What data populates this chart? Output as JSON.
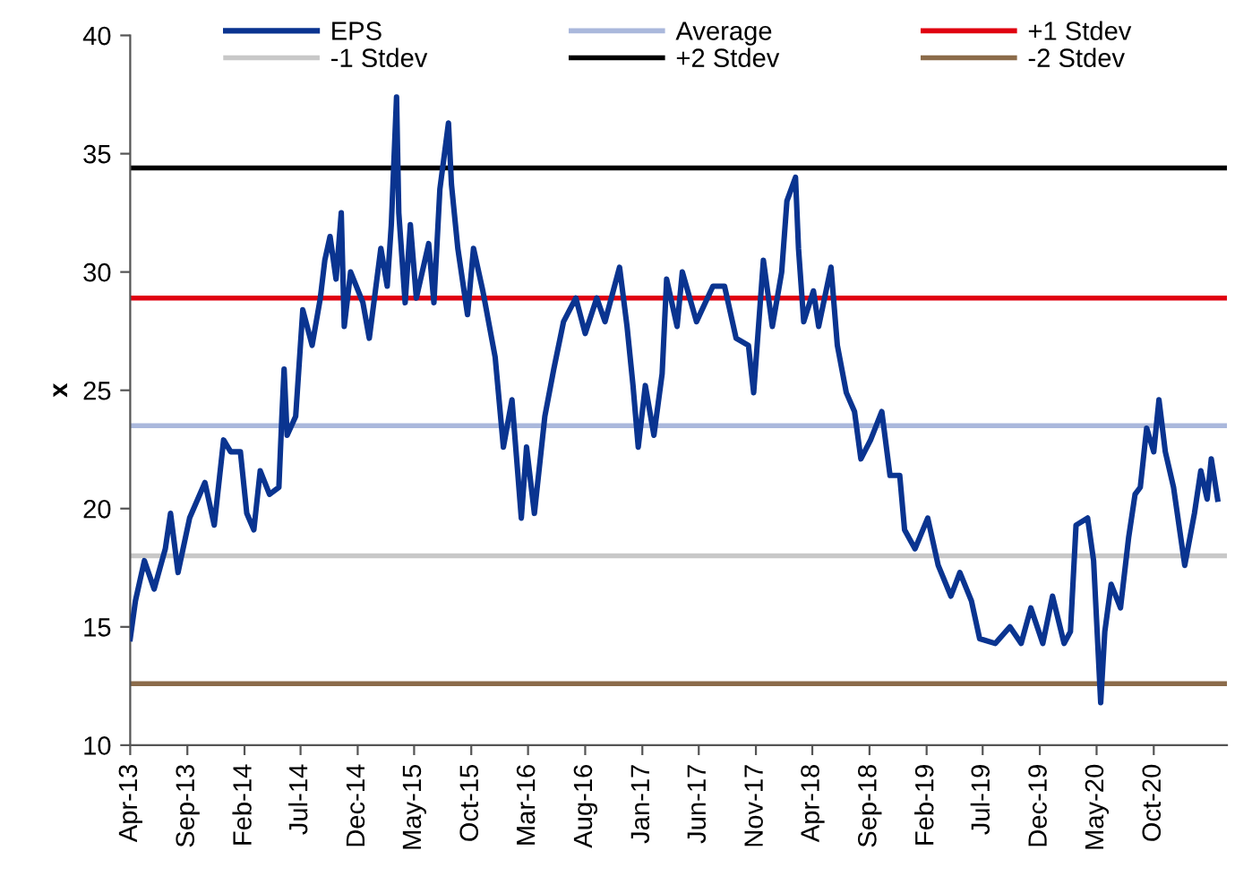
{
  "chart_data": {
    "type": "line",
    "ylabel": "x",
    "x": [
      "2013-04-01",
      "2013-04-15",
      "2013-05-09",
      "2013-06-04",
      "2013-07-04",
      "2013-07-18",
      "2013-08-07",
      "2013-09-07",
      "2013-10-18",
      "2013-11-12",
      "2013-12-07",
      "2013-12-26",
      "2014-01-21",
      "2014-02-07",
      "2014-02-26",
      "2014-03-15",
      "2014-04-09",
      "2014-05-04",
      "2014-05-12",
      "2014-05-18",
      "2014-05-26",
      "2014-06-18",
      "2014-07-07",
      "2014-08-01",
      "2014-08-23",
      "2014-09-04",
      "2014-09-18",
      "2014-10-04",
      "2014-10-18",
      "2014-10-26",
      "2014-11-12",
      "2014-12-15",
      "2015-01-01",
      "2015-02-01",
      "2015-02-18",
      "2015-03-01",
      "2015-03-15",
      "2015-03-21",
      "2015-04-07",
      "2015-04-21",
      "2015-05-07",
      "2015-06-09",
      "2015-06-23",
      "2015-07-09",
      "2015-08-01",
      "2015-08-09",
      "2015-08-26",
      "2015-09-21",
      "2015-10-07",
      "2015-11-01",
      "2015-12-04",
      "2015-12-26",
      "2016-01-18",
      "2016-02-12",
      "2016-02-26",
      "2016-03-18",
      "2016-04-15",
      "2016-05-09",
      "2016-06-04",
      "2016-07-07",
      "2016-08-01",
      "2016-09-01",
      "2016-09-23",
      "2016-11-01",
      "2016-11-21",
      "2016-12-07",
      "2016-12-21",
      "2017-01-09",
      "2017-02-01",
      "2017-02-23",
      "2017-03-07",
      "2017-04-04",
      "2017-04-18",
      "2017-05-26",
      "2017-07-09",
      "2017-08-09",
      "2017-09-09",
      "2017-10-12",
      "2017-10-26",
      "2017-11-21",
      "2017-12-15",
      "2018-01-09",
      "2018-01-23",
      "2018-02-15",
      "2018-02-23",
      "2018-03-09",
      "2018-04-04",
      "2018-04-18",
      "2018-05-21",
      "2018-06-07",
      "2018-07-01",
      "2018-07-23",
      "2018-08-09",
      "2018-09-04",
      "2018-10-04",
      "2018-10-26",
      "2018-11-21",
      "2018-12-04",
      "2019-01-01",
      "2019-02-04",
      "2019-03-04",
      "2019-04-07",
      "2019-05-01",
      "2019-06-01",
      "2019-06-23",
      "2019-08-04",
      "2019-09-12",
      "2019-10-12",
      "2019-11-07",
      "2019-12-09",
      "2020-01-04",
      "2020-02-04",
      "2020-02-21",
      "2020-03-07",
      "2020-04-07",
      "2020-04-23",
      "2020-05-12",
      "2020-05-23",
      "2020-06-09",
      "2020-07-04",
      "2020-07-26",
      "2020-08-12",
      "2020-08-26",
      "2020-09-12",
      "2020-10-01",
      "2020-10-15",
      "2020-11-01",
      "2020-11-23",
      "2020-12-23",
      "2021-01-18",
      "2021-02-04",
      "2021-02-21",
      "2021-03-04",
      "2021-03-21"
    ],
    "series": [
      {
        "name": "EPS",
        "color": "#0a3490",
        "values": [
          14.5,
          16.1,
          17.8,
          16.6,
          18.3,
          19.8,
          17.3,
          19.6,
          21.1,
          19.3,
          22.9,
          22.4,
          22.4,
          19.8,
          19.1,
          21.6,
          20.6,
          20.9,
          23.9,
          25.9,
          23.1,
          23.9,
          28.4,
          26.9,
          28.9,
          30.5,
          31.5,
          29.7,
          32.5,
          27.7,
          30.0,
          28.7,
          27.2,
          31.0,
          29.4,
          32.0,
          37.4,
          32.5,
          28.7,
          32.0,
          28.9,
          31.2,
          28.7,
          33.5,
          36.3,
          33.7,
          31.0,
          28.2,
          31.0,
          29.2,
          26.4,
          22.6,
          24.6,
          19.6,
          22.6,
          19.8,
          23.9,
          25.9,
          27.9,
          28.9,
          27.4,
          28.9,
          27.9,
          30.2,
          27.7,
          25.2,
          22.6,
          25.2,
          23.1,
          25.7,
          29.7,
          27.7,
          30.0,
          27.9,
          29.4,
          29.4,
          27.2,
          26.9,
          24.9,
          30.5,
          27.7,
          30.0,
          33.0,
          34.0,
          31.0,
          27.9,
          29.2,
          27.7,
          30.2,
          26.9,
          24.9,
          24.1,
          22.1,
          22.9,
          24.1,
          21.4,
          21.4,
          19.1,
          18.3,
          19.6,
          17.6,
          16.3,
          17.3,
          16.1,
          14.5,
          14.3,
          15.0,
          14.3,
          15.8,
          14.3,
          16.3,
          14.3,
          14.8,
          19.3,
          19.6,
          17.8,
          11.8,
          14.8,
          16.8,
          15.8,
          18.8,
          20.6,
          20.9,
          23.4,
          22.4,
          24.6,
          22.4,
          20.9,
          17.6,
          19.8,
          21.6,
          20.4,
          22.1,
          20.4
        ]
      }
    ],
    "ref_lines": [
      {
        "axis": "y",
        "value": 18.0,
        "label": "-1 Stdev",
        "color": "#c8c8c8"
      },
      {
        "axis": "y",
        "value": 23.5,
        "label": "Average",
        "color": "#aab8dc"
      },
      {
        "axis": "y",
        "value": 34.4,
        "label": "+2 Stdev",
        "color": "#000000"
      },
      {
        "axis": "y",
        "value": 28.9,
        "label": "+1 Stdev",
        "color": "#e00010"
      },
      {
        "axis": "y",
        "value": 12.6,
        "label": "-2 Stdev",
        "color": "#8b6b4a"
      }
    ],
    "xlim": [
      "2013-04-01",
      "2021-04-15"
    ],
    "xticks": [
      {
        "value": "2013-04-01",
        "label": "Apr-13"
      },
      {
        "value": "2013-09-01",
        "label": "Sep-13"
      },
      {
        "value": "2014-02-01",
        "label": "Feb-14"
      },
      {
        "value": "2014-07-01",
        "label": "Jul-14"
      },
      {
        "value": "2014-12-01",
        "label": "Dec-14"
      },
      {
        "value": "2015-05-01",
        "label": "May-15"
      },
      {
        "value": "2015-10-01",
        "label": "Oct-15"
      },
      {
        "value": "2016-03-01",
        "label": "Mar-16"
      },
      {
        "value": "2016-08-01",
        "label": "Aug-16"
      },
      {
        "value": "2017-01-01",
        "label": "Jan-17"
      },
      {
        "value": "2017-06-01",
        "label": "Jun-17"
      },
      {
        "value": "2017-11-01",
        "label": "Nov-17"
      },
      {
        "value": "2018-04-01",
        "label": "Apr-18"
      },
      {
        "value": "2018-09-01",
        "label": "Sep-18"
      },
      {
        "value": "2019-02-01",
        "label": "Feb-19"
      },
      {
        "value": "2019-07-01",
        "label": "Jul-19"
      },
      {
        "value": "2019-12-01",
        "label": "Dec-19"
      },
      {
        "value": "2020-05-01",
        "label": "May-20"
      },
      {
        "value": "2020-10-01",
        "label": "Oct-20"
      }
    ],
    "ylim": [
      10,
      40
    ],
    "yticks": [
      10,
      15,
      20,
      25,
      30,
      35,
      40
    ],
    "grid": false,
    "legend": "top",
    "marker": "none",
    "line_style": "solid"
  }
}
